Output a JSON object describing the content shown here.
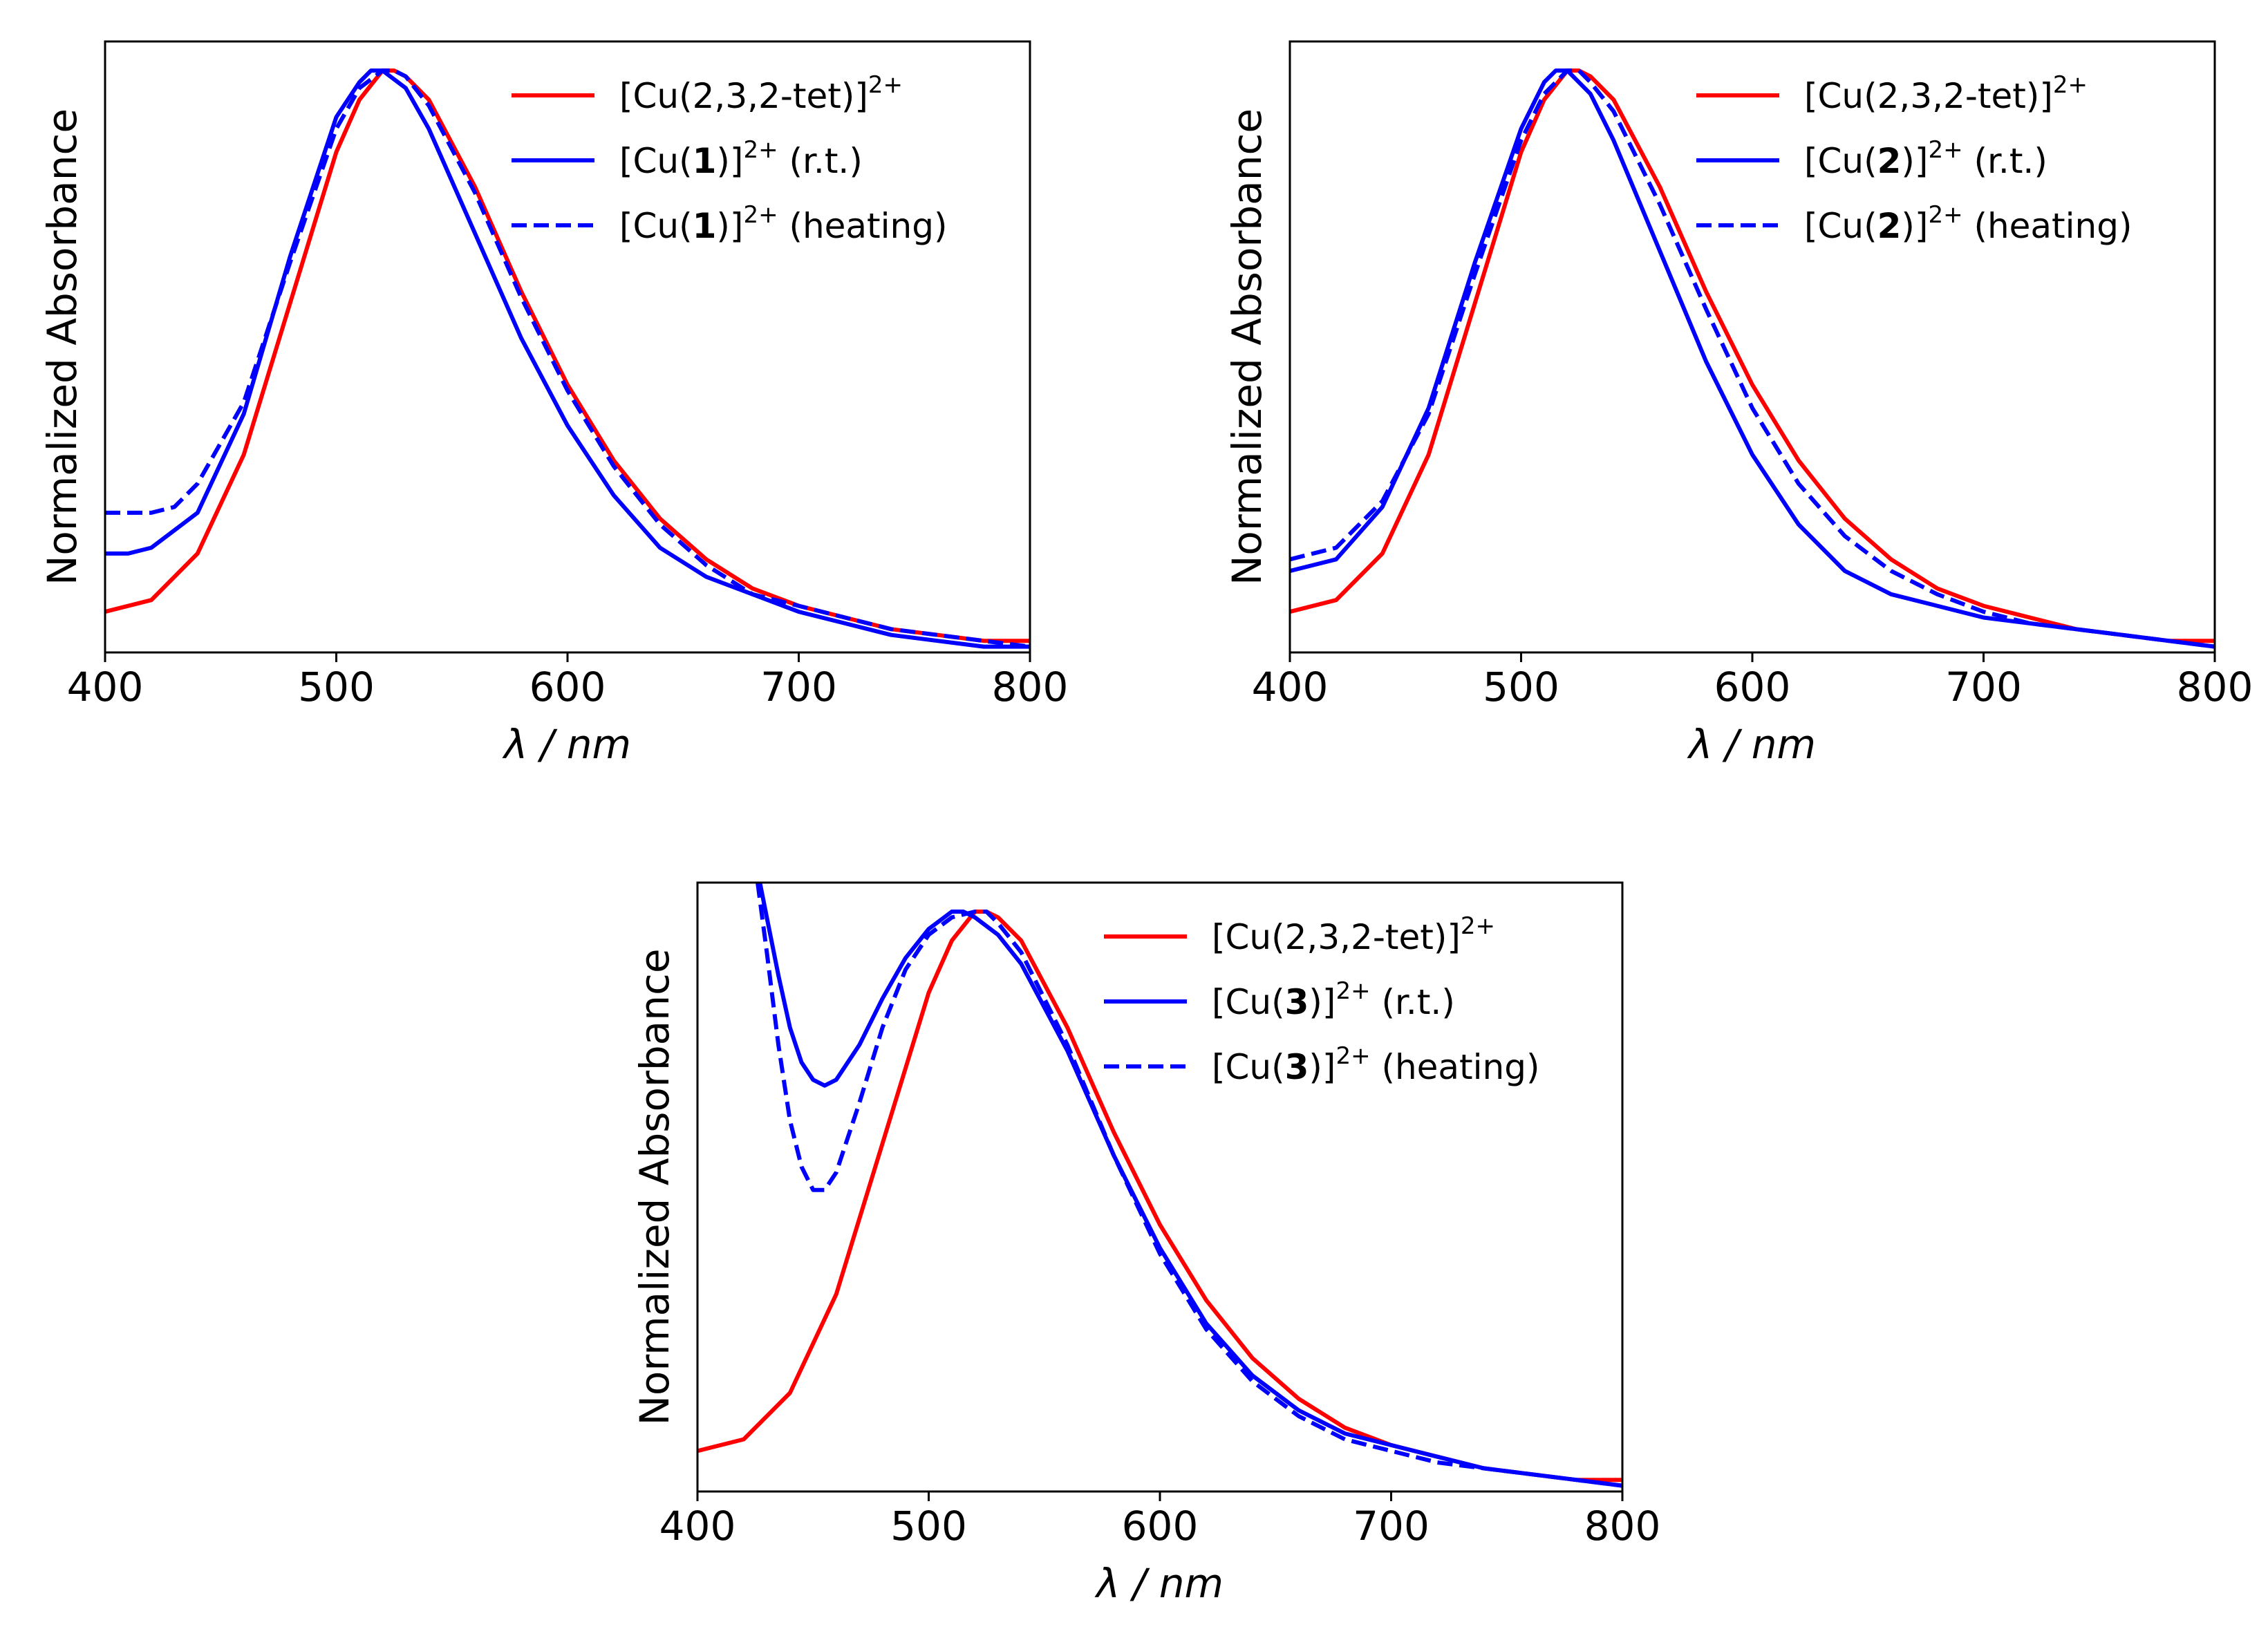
{
  "colors": {
    "red": "#ff0000",
    "blue": "#0000ff",
    "axis": "#000000"
  },
  "chart_data": [
    {
      "id": "panel-1",
      "type": "line",
      "xlabel": "λ / nm",
      "ylabel": "Normalized Absorbance",
      "xlim": [
        400,
        800
      ],
      "ylim": [
        0,
        1.05
      ],
      "xticks": [
        "400",
        "500",
        "600",
        "700",
        "800"
      ],
      "legend_position": "top-right",
      "compound": "1",
      "series": [
        {
          "name": "[Cu(2,3,2-tet)]2+",
          "label_prefix": "[Cu(2,3,2-tet)]",
          "label_bold": "",
          "label_close": "",
          "label_sup": "2+",
          "label_suffix": "",
          "color": "#ff0000",
          "style": "solid",
          "x": [
            400,
            420,
            440,
            460,
            480,
            500,
            510,
            520,
            525,
            530,
            540,
            560,
            580,
            600,
            620,
            640,
            660,
            680,
            700,
            720,
            740,
            760,
            780,
            800
          ],
          "y": [
            0.07,
            0.09,
            0.17,
            0.34,
            0.6,
            0.86,
            0.95,
            1.0,
            1.0,
            0.99,
            0.95,
            0.8,
            0.62,
            0.46,
            0.33,
            0.23,
            0.16,
            0.11,
            0.08,
            0.06,
            0.04,
            0.03,
            0.02,
            0.02
          ]
        },
        {
          "name": "[Cu(1)]2+ (r.t.)",
          "label_prefix": "[Cu(",
          "label_bold": "1",
          "label_close": ")]",
          "label_sup": "2+",
          "label_suffix": " (r.t.)",
          "color": "#0000ff",
          "style": "solid",
          "x": [
            400,
            410,
            420,
            440,
            460,
            480,
            500,
            510,
            515,
            520,
            530,
            540,
            560,
            580,
            600,
            620,
            640,
            660,
            680,
            700,
            720,
            740,
            760,
            780,
            800
          ],
          "y": [
            0.17,
            0.17,
            0.18,
            0.24,
            0.41,
            0.68,
            0.92,
            0.98,
            1.0,
            1.0,
            0.97,
            0.9,
            0.72,
            0.54,
            0.39,
            0.27,
            0.18,
            0.13,
            0.1,
            0.07,
            0.05,
            0.03,
            0.02,
            0.01,
            0.01
          ]
        },
        {
          "name": "[Cu(1)]2+ (heating)",
          "label_prefix": "[Cu(",
          "label_bold": "1",
          "label_close": ")]",
          "label_sup": "2+",
          "label_suffix": " (heating)",
          "color": "#0000ff",
          "style": "dashed",
          "x": [
            400,
            410,
            420,
            430,
            440,
            460,
            480,
            500,
            510,
            520,
            525,
            530,
            540,
            560,
            580,
            600,
            620,
            640,
            660,
            680,
            700,
            720,
            740,
            760,
            780,
            800
          ],
          "y": [
            0.24,
            0.24,
            0.24,
            0.25,
            0.29,
            0.43,
            0.67,
            0.9,
            0.97,
            1.0,
            1.0,
            0.99,
            0.94,
            0.79,
            0.61,
            0.45,
            0.32,
            0.22,
            0.15,
            0.1,
            0.08,
            0.06,
            0.04,
            0.03,
            0.02,
            0.01
          ]
        }
      ]
    },
    {
      "id": "panel-2",
      "type": "line",
      "xlabel": "λ / nm",
      "ylabel": "Normalized Absorbance",
      "xlim": [
        400,
        800
      ],
      "ylim": [
        0,
        1.05
      ],
      "xticks": [
        "400",
        "500",
        "600",
        "700",
        "800"
      ],
      "legend_position": "top-right",
      "compound": "2",
      "series": [
        {
          "name": "[Cu(2,3,2-tet)]2+",
          "label_prefix": "[Cu(2,3,2-tet)]",
          "label_bold": "",
          "label_close": "",
          "label_sup": "2+",
          "label_suffix": "",
          "color": "#ff0000",
          "style": "solid",
          "x": [
            400,
            420,
            440,
            460,
            480,
            500,
            510,
            520,
            525,
            530,
            540,
            560,
            580,
            600,
            620,
            640,
            660,
            680,
            700,
            720,
            740,
            760,
            780,
            800
          ],
          "y": [
            0.07,
            0.09,
            0.17,
            0.34,
            0.6,
            0.86,
            0.95,
            1.0,
            1.0,
            0.99,
            0.95,
            0.8,
            0.62,
            0.46,
            0.33,
            0.23,
            0.16,
            0.11,
            0.08,
            0.06,
            0.04,
            0.03,
            0.02,
            0.02
          ]
        },
        {
          "name": "[Cu(2)]2+ (r.t.)",
          "label_prefix": "[Cu(",
          "label_bold": "2",
          "label_close": ")]",
          "label_sup": "2+",
          "label_suffix": " (r.t.)",
          "color": "#0000ff",
          "style": "solid",
          "x": [
            400,
            420,
            440,
            460,
            480,
            500,
            510,
            515,
            520,
            530,
            540,
            560,
            580,
            600,
            620,
            640,
            660,
            680,
            700,
            720,
            740,
            760,
            780,
            800
          ],
          "y": [
            0.14,
            0.16,
            0.25,
            0.42,
            0.67,
            0.9,
            0.98,
            1.0,
            1.0,
            0.96,
            0.88,
            0.69,
            0.5,
            0.34,
            0.22,
            0.14,
            0.1,
            0.08,
            0.06,
            0.05,
            0.04,
            0.03,
            0.02,
            0.01
          ]
        },
        {
          "name": "[Cu(2)]2+ (heating)",
          "label_prefix": "[Cu(",
          "label_bold": "2",
          "label_close": ")]",
          "label_sup": "2+",
          "label_suffix": " (heating)",
          "color": "#0000ff",
          "style": "dashed",
          "x": [
            400,
            420,
            440,
            460,
            480,
            500,
            510,
            520,
            525,
            530,
            540,
            560,
            580,
            600,
            620,
            640,
            660,
            680,
            700,
            720,
            740,
            760,
            780,
            800
          ],
          "y": [
            0.16,
            0.18,
            0.26,
            0.41,
            0.65,
            0.88,
            0.96,
            1.0,
            1.0,
            0.98,
            0.93,
            0.77,
            0.59,
            0.42,
            0.29,
            0.2,
            0.14,
            0.1,
            0.07,
            0.05,
            0.04,
            0.03,
            0.02,
            0.01
          ]
        }
      ]
    },
    {
      "id": "panel-3",
      "type": "line",
      "xlabel": "λ / nm",
      "ylabel": "Normalized Absorbance",
      "xlim": [
        400,
        800
      ],
      "ylim": [
        0,
        1.05
      ],
      "xticks": [
        "400",
        "500",
        "600",
        "700",
        "800"
      ],
      "legend_position": "top-right",
      "compound": "3",
      "series": [
        {
          "name": "[Cu(2,3,2-tet)]2+",
          "label_prefix": "[Cu(2,3,2-tet)]",
          "label_bold": "",
          "label_close": "",
          "label_sup": "2+",
          "label_suffix": "",
          "color": "#ff0000",
          "style": "solid",
          "x": [
            400,
            420,
            440,
            460,
            480,
            500,
            510,
            520,
            525,
            530,
            540,
            560,
            580,
            600,
            620,
            640,
            660,
            680,
            700,
            720,
            740,
            760,
            780,
            800
          ],
          "y": [
            0.07,
            0.09,
            0.17,
            0.34,
            0.6,
            0.86,
            0.95,
            1.0,
            1.0,
            0.99,
            0.95,
            0.8,
            0.62,
            0.46,
            0.33,
            0.23,
            0.16,
            0.11,
            0.08,
            0.06,
            0.04,
            0.03,
            0.02,
            0.02
          ]
        },
        {
          "name": "[Cu(3)]2+ (r.t.)",
          "label_prefix": "[Cu(",
          "label_bold": "3",
          "label_close": ")]",
          "label_sup": "2+",
          "label_suffix": " (r.t.)",
          "color": "#0000ff",
          "style": "solid",
          "x": [
            427,
            430,
            435,
            440,
            445,
            450,
            455,
            460,
            470,
            480,
            490,
            500,
            510,
            515,
            520,
            530,
            540,
            560,
            580,
            600,
            620,
            640,
            660,
            680,
            700,
            720,
            740,
            760,
            780,
            800
          ],
          "y": [
            1.05,
            0.99,
            0.89,
            0.8,
            0.74,
            0.71,
            0.7,
            0.71,
            0.77,
            0.85,
            0.92,
            0.97,
            1.0,
            1.0,
            0.99,
            0.96,
            0.91,
            0.76,
            0.58,
            0.42,
            0.29,
            0.2,
            0.14,
            0.1,
            0.08,
            0.06,
            0.04,
            0.03,
            0.02,
            0.01
          ]
        },
        {
          "name": "[Cu(3)]2+ (heating)",
          "label_prefix": "[Cu(",
          "label_bold": "3",
          "label_close": ")]",
          "label_sup": "2+",
          "label_suffix": " (heating)",
          "color": "#0000ff",
          "style": "dashed",
          "x": [
            426,
            430,
            435,
            440,
            445,
            450,
            455,
            460,
            470,
            480,
            490,
            500,
            510,
            520,
            525,
            530,
            540,
            560,
            580,
            600,
            620,
            640,
            660,
            680,
            700,
            720,
            740,
            760,
            780,
            800
          ],
          "y": [
            1.05,
            0.93,
            0.77,
            0.64,
            0.56,
            0.52,
            0.52,
            0.55,
            0.67,
            0.8,
            0.9,
            0.96,
            0.99,
            1.0,
            1.0,
            0.98,
            0.93,
            0.77,
            0.58,
            0.41,
            0.28,
            0.19,
            0.13,
            0.09,
            0.07,
            0.05,
            0.04,
            0.03,
            0.02,
            0.01
          ]
        }
      ]
    }
  ]
}
